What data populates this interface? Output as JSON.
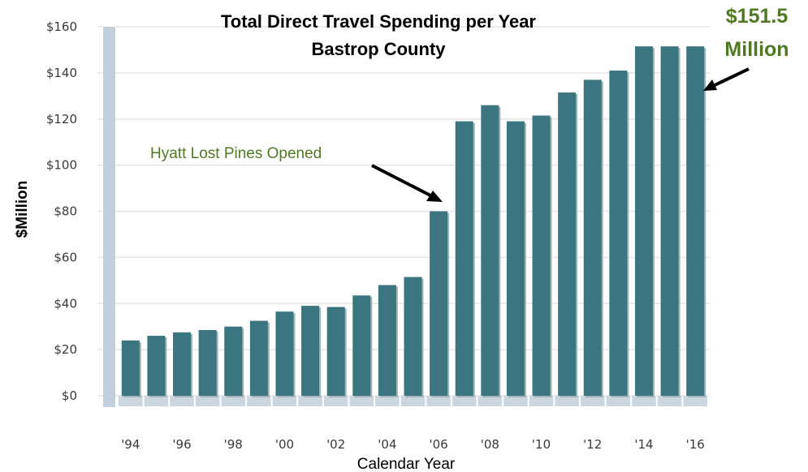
{
  "chart_data": {
    "type": "bar",
    "title": "Total Direct Travel Spending per Year",
    "subtitle": "Bastrop County",
    "xlabel": "Calendar Year",
    "ylabel": "$Million",
    "ylim": [
      0,
      160
    ],
    "yticks": [
      "$0",
      "$20",
      "$40",
      "$60",
      "$80",
      "$100",
      "$120",
      "$140",
      "$160"
    ],
    "xtick_labels": [
      "'94",
      "'96",
      "'98",
      "'00",
      "'02",
      "'04",
      "'06",
      "'08",
      "'10",
      "'12",
      "'14",
      "'16"
    ],
    "categories": [
      "1994",
      "1995",
      "1996",
      "1997",
      "1998",
      "1999",
      "2000",
      "2001",
      "2002",
      "2003",
      "2004",
      "2005",
      "2006",
      "2007",
      "2008",
      "2009",
      "2010",
      "2011",
      "2012",
      "2013",
      "2014",
      "2015",
      "2016"
    ],
    "values": [
      24,
      26,
      27.5,
      28.5,
      30,
      32.5,
      36.5,
      39,
      38.5,
      43.5,
      48,
      51.5,
      80,
      119,
      126,
      119,
      121.5,
      131.5,
      137,
      141,
      151.5,
      151.5,
      151.5
    ],
    "grid": true,
    "colors": {
      "bar": "#3b7580",
      "bar_shadow": "#cbd6e0",
      "y_axis_band": "#c2cfdc",
      "grid": "#e6e6e6"
    },
    "annotations": [
      {
        "text": "Hyatt Lost Pines Opened",
        "points_to": "2006"
      },
      {
        "text_line1": "$151.5",
        "text_line2": "Million",
        "points_to": "2016"
      }
    ]
  }
}
